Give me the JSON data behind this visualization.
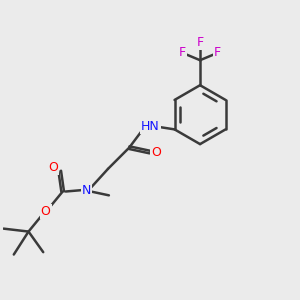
{
  "bg_color": "#ebebeb",
  "atom_colors": {
    "C": "#3a3a3a",
    "N": "#1414ff",
    "O": "#ff0000",
    "F": "#cc00cc",
    "H": "#1a6aaa"
  },
  "bond_color": "#3a3a3a",
  "figsize": [
    3.0,
    3.0
  ],
  "dpi": 100
}
